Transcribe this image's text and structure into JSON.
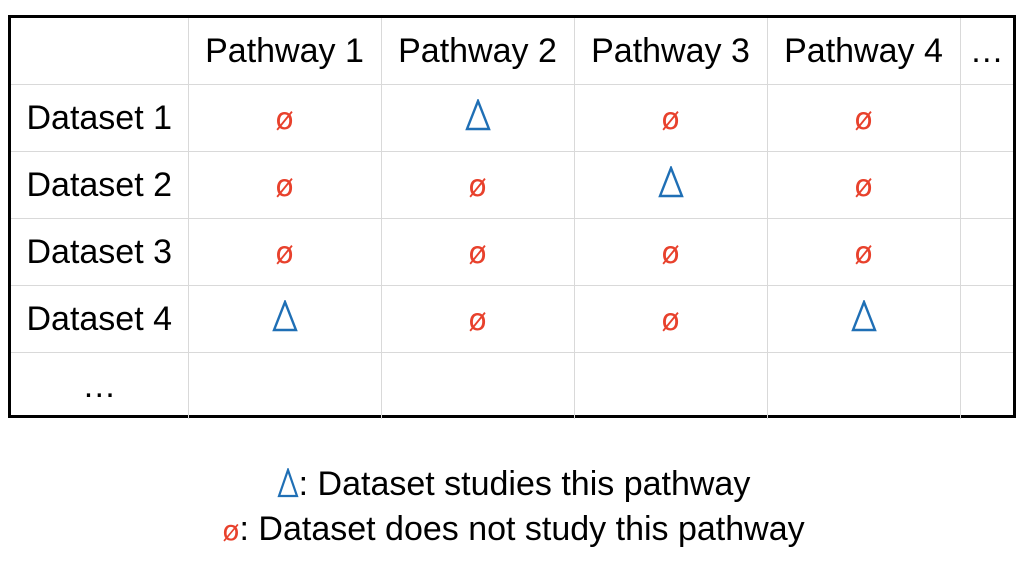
{
  "table": {
    "corner": "",
    "columns": [
      "Pathway 1",
      "Pathway 2",
      "Pathway 3",
      "Pathway 4",
      "…"
    ],
    "rows": [
      {
        "label": "Dataset 1",
        "cells": [
          "ø",
          "Δ",
          "ø",
          "ø",
          ""
        ]
      },
      {
        "label": "Dataset 2",
        "cells": [
          "ø",
          "ø",
          "Δ",
          "ø",
          ""
        ]
      },
      {
        "label": "Dataset 3",
        "cells": [
          "ø",
          "ø",
          "ø",
          "ø",
          ""
        ]
      },
      {
        "label": "Dataset 4",
        "cells": [
          "Δ",
          "ø",
          "ø",
          "Δ",
          ""
        ]
      },
      {
        "label": "…",
        "cells": [
          "",
          "",
          "",
          "",
          ""
        ]
      }
    ]
  },
  "legend": {
    "present_symbol": "Δ",
    "present_text": ": Dataset studies this pathway",
    "absent_symbol": "ø",
    "absent_text": ": Dataset does not study this pathway"
  },
  "colors": {
    "present": "#1f6fb5",
    "absent": "#e8412c",
    "border": "#000000",
    "grid": "#d9d9d9"
  }
}
